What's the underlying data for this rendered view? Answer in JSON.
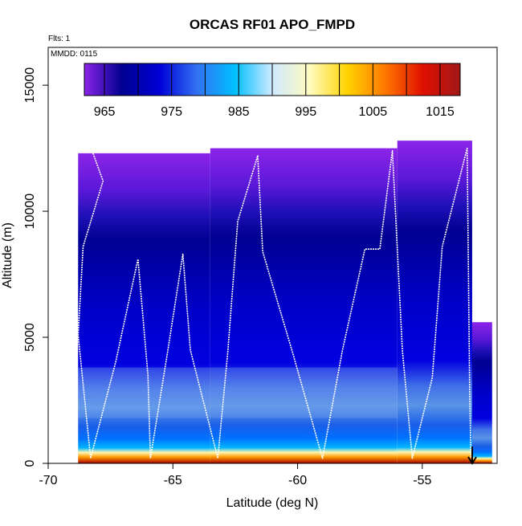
{
  "chart_data": {
    "type": "heatmap",
    "title": "ORCAS RF01 APO_FMPD",
    "annotations": {
      "flights": "Flts: 1",
      "date": "MMDD: 0115"
    },
    "xlabel": "Latitude (deg N)",
    "ylabel": "Altitude (m)",
    "xlim": [
      -70,
      -52
    ],
    "ylim": [
      0,
      16500
    ],
    "xticks": [
      -70,
      -65,
      -60,
      -55
    ],
    "yticks": [
      0,
      5000,
      10000,
      15000
    ],
    "colorbar": {
      "range": [
        962,
        1018
      ],
      "ticks": [
        965,
        975,
        985,
        995,
        1005,
        1015
      ],
      "colors": [
        "#8b24e8",
        "#00008f",
        "#0000d8",
        "#3272f2",
        "#00bfff",
        "#cfeaff",
        "#fffbc0",
        "#ffd300",
        "#ff7800",
        "#e01000",
        "#a01818"
      ]
    },
    "field_extent": {
      "columns": [
        {
          "lat": [
            -68.8,
            -63.5
          ],
          "alt_top": 12300
        },
        {
          "lat": [
            -63.5,
            -56.0
          ],
          "alt_top": 12500
        },
        {
          "lat": [
            -56.0,
            -53.0
          ],
          "alt_top": 12800
        },
        {
          "lat": [
            -53.0,
            -52.2
          ],
          "alt_top": 5600
        }
      ],
      "bottom_alt": 0
    },
    "flight_track": [
      [
        -68.2,
        12300
      ],
      [
        -67.8,
        11200
      ],
      [
        -68.6,
        8600
      ],
      [
        -68.8,
        5100
      ],
      [
        -68.3,
        200
      ],
      [
        -67.3,
        4000
      ],
      [
        -66.4,
        8100
      ],
      [
        -66.0,
        3500
      ],
      [
        -65.9,
        200
      ],
      [
        -65.2,
        4500
      ],
      [
        -64.6,
        8300
      ],
      [
        -64.3,
        4500
      ],
      [
        -63.2,
        200
      ],
      [
        -62.8,
        4400
      ],
      [
        -62.4,
        9600
      ],
      [
        -61.6,
        12200
      ],
      [
        -61.4,
        8400
      ],
      [
        -60.2,
        4400
      ],
      [
        -59.0,
        200
      ],
      [
        -58.2,
        4500
      ],
      [
        -57.3,
        8500
      ],
      [
        -56.7,
        8500
      ],
      [
        -56.2,
        12400
      ],
      [
        -55.8,
        4500
      ],
      [
        -55.4,
        200
      ],
      [
        -54.6,
        3400
      ],
      [
        -54.2,
        8600
      ],
      [
        -53.2,
        12500
      ],
      [
        -53.1,
        3000
      ],
      [
        -53.05,
        200
      ]
    ]
  }
}
